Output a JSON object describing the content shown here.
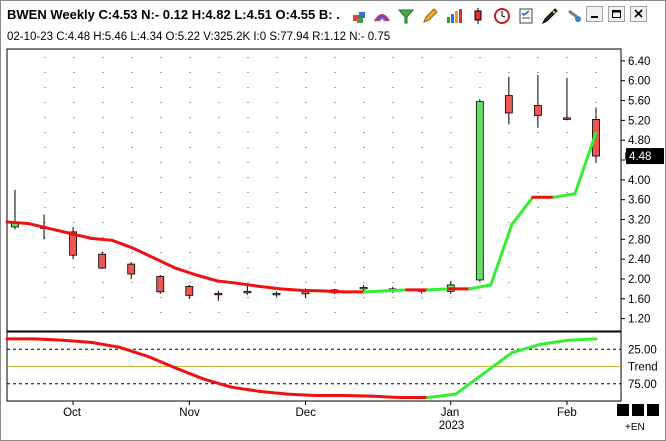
{
  "window": {
    "title": "BWEN Weekly C:4.53 N:- 0.12 H:4.82 L:4.51 O:4.55 B: ."
  },
  "infobar": {
    "text": "02-10-23  C:4.48  H:5.46  L:4.34  O:5.22  V:325.2K  I:0  S:77.94  R:1.12  N:- 0.75"
  },
  "toolbar": {
    "icons": [
      "cubes-icon",
      "rainbow-icon",
      "filter-funnel-icon",
      "pencil-icon",
      "bar-chart-icon",
      "candlestick-icon",
      "clock-icon",
      "checklist-icon",
      "pen-icon",
      "pin-icon"
    ]
  },
  "tray": {
    "label": "+EN"
  },
  "chart_data": {
    "type": "candlestick",
    "symbol": "BWEN",
    "interval": "Weekly",
    "y_axis": {
      "ticks": [
        1.2,
        1.6,
        2.0,
        2.4,
        2.8,
        3.2,
        3.6,
        4.0,
        4.4,
        4.8,
        5.2,
        5.6,
        6.0,
        6.4
      ],
      "labels": [
        "1.20",
        "1.60",
        "2.00",
        "2.40",
        "2.80",
        "3.20",
        "3.60",
        "4.00",
        "4.40",
        "4.80",
        "5.20",
        "5.60",
        "6.00",
        "6.40"
      ],
      "range": [
        0.95,
        6.6
      ]
    },
    "last_price": {
      "value": 4.48,
      "label": "4.48"
    },
    "x_axis": {
      "labels": [
        "Oct",
        "Nov",
        "Dec",
        "Jan",
        "Feb"
      ],
      "year_label": "2023",
      "label_index": [
        2,
        6,
        10,
        15,
        19
      ]
    },
    "candles": [
      {
        "o": 3.05,
        "h": 3.8,
        "l": 3.0,
        "c": 3.15
      },
      {
        "o": 3.05,
        "h": 3.3,
        "l": 2.8,
        "c": 3.02
      },
      {
        "o": 2.95,
        "h": 3.05,
        "l": 2.4,
        "c": 2.48
      },
      {
        "o": 2.5,
        "h": 2.55,
        "l": 2.2,
        "c": 2.22
      },
      {
        "o": 2.3,
        "h": 2.34,
        "l": 2.0,
        "c": 2.1
      },
      {
        "o": 2.05,
        "h": 2.08,
        "l": 1.7,
        "c": 1.74
      },
      {
        "o": 1.85,
        "h": 1.88,
        "l": 1.6,
        "c": 1.67
      },
      {
        "o": 1.71,
        "h": 1.76,
        "l": 1.56,
        "c": 1.7
      },
      {
        "o": 1.73,
        "h": 1.9,
        "l": 1.68,
        "c": 1.75
      },
      {
        "o": 1.68,
        "h": 1.75,
        "l": 1.64,
        "c": 1.71
      },
      {
        "o": 1.78,
        "h": 1.81,
        "l": 1.62,
        "c": 1.7
      },
      {
        "o": 1.72,
        "h": 1.8,
        "l": 1.7,
        "c": 1.78
      },
      {
        "o": 1.8,
        "h": 1.88,
        "l": 1.75,
        "c": 1.83
      },
      {
        "o": 1.78,
        "h": 1.84,
        "l": 1.72,
        "c": 1.8
      },
      {
        "o": 1.78,
        "h": 1.8,
        "l": 1.7,
        "c": 1.78
      },
      {
        "o": 1.75,
        "h": 1.96,
        "l": 1.7,
        "c": 1.88
      },
      {
        "o": 1.98,
        "h": 5.63,
        "l": 1.95,
        "c": 5.58
      },
      {
        "o": 5.7,
        "h": 6.08,
        "l": 5.12,
        "c": 5.35
      },
      {
        "o": 5.5,
        "h": 6.12,
        "l": 5.05,
        "c": 5.3
      },
      {
        "o": 5.25,
        "h": 6.06,
        "l": 5.2,
        "c": 5.23
      },
      {
        "o": 5.22,
        "h": 5.46,
        "l": 4.34,
        "c": 4.48
      }
    ],
    "moving_average": [
      3.15,
      3.12,
      3.02,
      2.92,
      2.82,
      2.78,
      2.62,
      2.42,
      2.22,
      2.08,
      1.96,
      1.91,
      1.85,
      1.8,
      1.77,
      1.76,
      1.74,
      1.74,
      1.76,
      1.78,
      1.78,
      1.8,
      1.8,
      1.88,
      3.1,
      3.65,
      3.65,
      3.72,
      4.95
    ],
    "ma_colors": {
      "up": "#33ee33",
      "down": "#ee1111"
    },
    "candle_colors": {
      "up": "#66dd66",
      "down": "#ee5555"
    },
    "lower_panel": {
      "range": [
        0,
        100
      ],
      "levels": [
        {
          "value": 25,
          "label": "25.00"
        },
        {
          "value": 50,
          "label": "Trend"
        },
        {
          "value": 75,
          "label": "75.00"
        }
      ],
      "oscillator": [
        10,
        10,
        12,
        15,
        22,
        35,
        52,
        68,
        80,
        86,
        90,
        92,
        92,
        93,
        95,
        95,
        90,
        60,
        30,
        18,
        12,
        10
      ]
    }
  }
}
